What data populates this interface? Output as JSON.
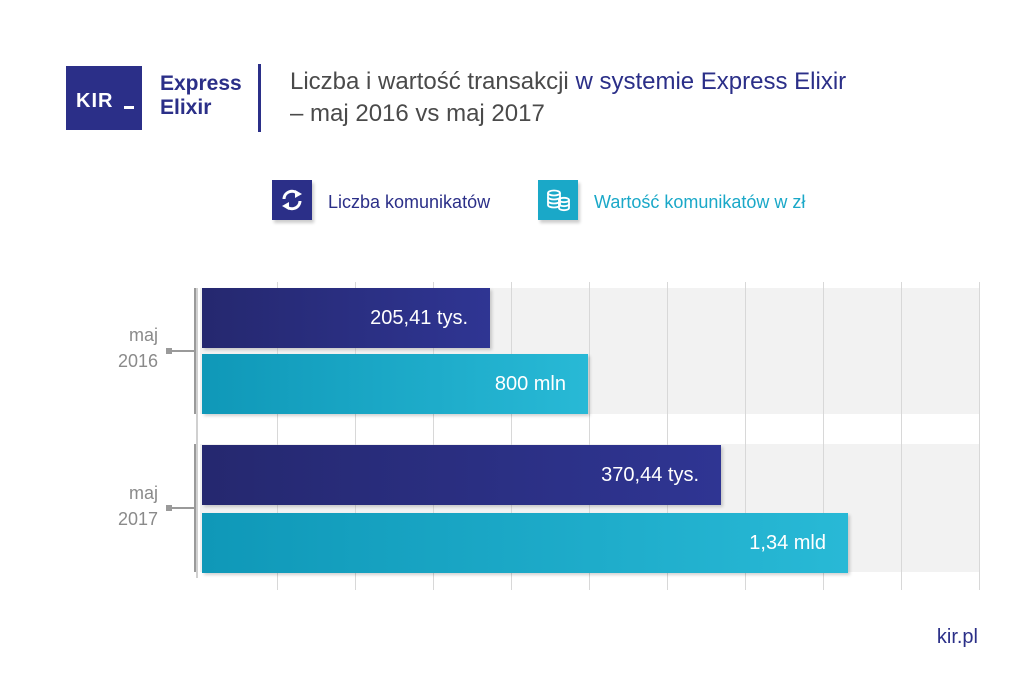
{
  "logo": {
    "kir": "KIR",
    "express": "Express",
    "elixir": "Elixir"
  },
  "title": {
    "line1_part1": "Liczba i wartość transakcji ",
    "line1_part2": "w systemie Express Elixir",
    "line2": "– maj 2016 vs maj 2017"
  },
  "legend": {
    "count_label": "Liczba komunikatów",
    "value_label": "Wartość komunikatów w zł",
    "count_icon": "refresh-arrows-icon",
    "value_icon": "coins-stack-icon"
  },
  "colors": {
    "count": "#2b2f88",
    "value": "#1aa8c8",
    "text_dark": "#4a4a4a"
  },
  "chart_data": {
    "type": "bar",
    "orientation": "horizontal",
    "categories": [
      "maj 2016",
      "maj 2017"
    ],
    "category_labels": [
      {
        "line1": "maj",
        "line2": "2016"
      },
      {
        "line1": "maj",
        "line2": "2017"
      }
    ],
    "series": [
      {
        "name": "Liczba komunikatów",
        "values": [
          205.41,
          370.44
        ],
        "labels": [
          "205,41 tys.",
          "370,44 tys."
        ]
      },
      {
        "name": "Wartość komunikatów w zł",
        "values": [
          0.8,
          1.34
        ],
        "labels": [
          "800 mln",
          "1,34 mld"
        ]
      }
    ],
    "grid": true,
    "legend_position": "top"
  },
  "footer": {
    "url": "kir.pl"
  }
}
